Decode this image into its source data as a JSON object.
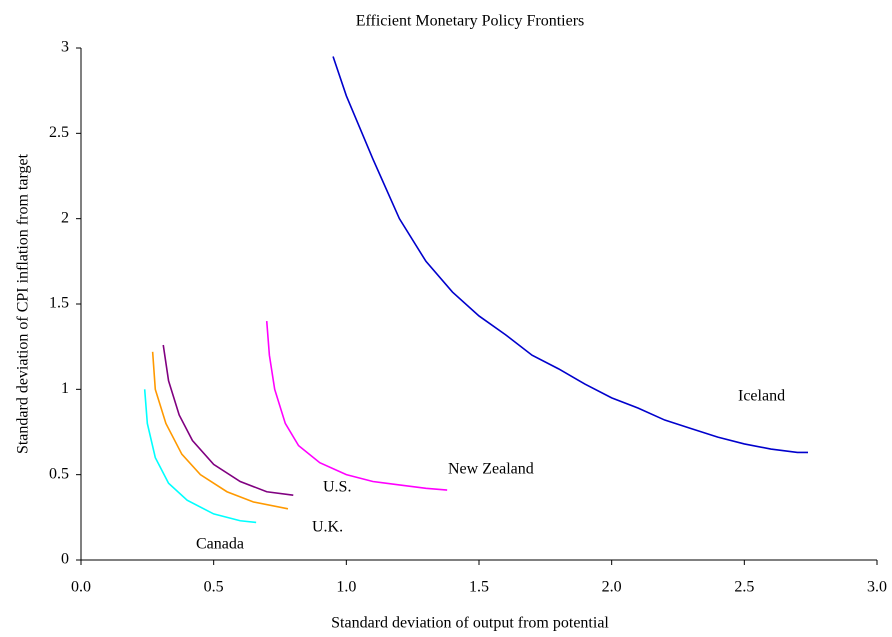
{
  "chart_data": {
    "type": "line",
    "title": "Efficient Monetary Policy Frontiers",
    "xlabel": "Standard deviation of output from potential",
    "ylabel": "Standard deviation of CPI inflation from target",
    "xlim": [
      0,
      3
    ],
    "ylim": [
      0,
      3
    ],
    "xticks": [
      {
        "value": 0,
        "label": "0.0"
      },
      0.5,
      {
        "value": 1,
        "label": "1.0"
      },
      1.5,
      {
        "value": 2,
        "label": "2.0"
      },
      2.5,
      {
        "value": 3,
        "label": "3.0"
      }
    ],
    "yticks": [
      0,
      0.5,
      1,
      1.5,
      2,
      2.5,
      3
    ],
    "grid": false,
    "series": [
      {
        "name": "Iceland",
        "color": "#0000cc",
        "x": [
          0.95,
          1.0,
          1.1,
          1.2,
          1.3,
          1.4,
          1.5,
          1.6,
          1.7,
          1.8,
          1.9,
          2.0,
          2.1,
          2.2,
          2.3,
          2.4,
          2.5,
          2.6,
          2.7,
          2.74
        ],
        "values": [
          2.95,
          2.72,
          2.35,
          2.0,
          1.75,
          1.57,
          1.43,
          1.32,
          1.2,
          1.12,
          1.03,
          0.95,
          0.89,
          0.82,
          0.77,
          0.72,
          0.68,
          0.65,
          0.63,
          0.63
        ]
      },
      {
        "name": "New Zealand",
        "color": "#ff00ff",
        "x": [
          0.7,
          0.71,
          0.73,
          0.77,
          0.82,
          0.9,
          1.0,
          1.1,
          1.2,
          1.3,
          1.38
        ],
        "values": [
          1.4,
          1.2,
          1.0,
          0.8,
          0.67,
          0.57,
          0.5,
          0.46,
          0.44,
          0.42,
          0.41
        ]
      },
      {
        "name": "U.S.",
        "color": "#800080",
        "x": [
          0.31,
          0.33,
          0.37,
          0.42,
          0.5,
          0.6,
          0.7,
          0.8
        ],
        "values": [
          1.26,
          1.05,
          0.85,
          0.7,
          0.56,
          0.46,
          0.4,
          0.38
        ]
      },
      {
        "name": "U.K.",
        "color": "#ff9900",
        "x": [
          0.27,
          0.28,
          0.32,
          0.38,
          0.45,
          0.55,
          0.65,
          0.78
        ],
        "values": [
          1.22,
          1.0,
          0.8,
          0.62,
          0.5,
          0.4,
          0.34,
          0.3
        ]
      },
      {
        "name": "Canada",
        "color": "#00ffff",
        "x": [
          0.24,
          0.25,
          0.28,
          0.33,
          0.4,
          0.5,
          0.6,
          0.66
        ],
        "values": [
          1.0,
          0.8,
          0.6,
          0.45,
          0.35,
          0.27,
          0.23,
          0.22
        ]
      }
    ]
  }
}
